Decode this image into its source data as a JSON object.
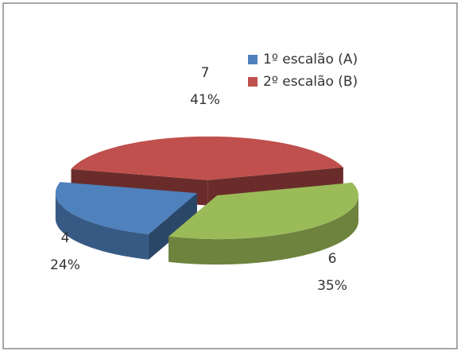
{
  "chart_data": {
    "type": "pie",
    "view": "3d-exploded",
    "categories": [
      "1º escalão (A)",
      "2º escalão (B)",
      null
    ],
    "values": [
      4,
      7,
      6
    ],
    "value_labels": [
      "24%",
      "41%",
      "35%"
    ],
    "colors": [
      "#4f81bd",
      "#c0504d",
      "#9bbb59"
    ],
    "legend": "top-right"
  }
}
